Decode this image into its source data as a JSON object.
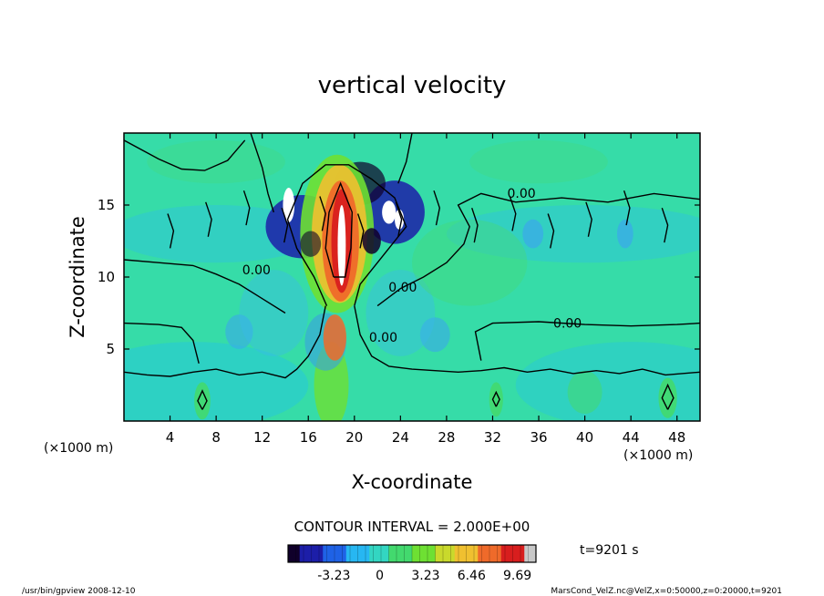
{
  "chart_data": {
    "type": "heatmap",
    "title": "vertical velocity",
    "xlabel": "X-coordinate",
    "ylabel": "Z-coordinate",
    "x_unit_left": "(×1000 m)",
    "x_unit_right": "(×1000 m)",
    "xlim": [
      0,
      50
    ],
    "ylim": [
      0,
      20
    ],
    "x_ticks": [
      4,
      8,
      12,
      16,
      20,
      24,
      28,
      32,
      36,
      40,
      44,
      48
    ],
    "y_ticks": [
      5,
      10,
      15
    ],
    "contour_labels": [
      {
        "text": "0.00",
        "x": 34.5,
        "y": 15.5
      },
      {
        "text": "0.00",
        "x": 11.5,
        "y": 10.2
      },
      {
        "text": "0.00",
        "x": 24.2,
        "y": 9.0
      },
      {
        "text": "0.00",
        "x": 38.5,
        "y": 6.5
      },
      {
        "text": "0.00",
        "x": 22.5,
        "y": 5.5
      }
    ],
    "contour_interval_text": "CONTOUR INTERVAL = 2.000E+00",
    "colorbar": {
      "ticks": [
        {
          "label": "-3.23",
          "value": -3.23
        },
        {
          "label": "0",
          "value": 0
        },
        {
          "label": "3.23",
          "value": 3.23
        },
        {
          "label": "6.46",
          "value": 6.46
        },
        {
          "label": "9.69",
          "value": 9.69
        }
      ],
      "range": [
        -6.46,
        11.0
      ],
      "colors": [
        "#10002a",
        "#1c1ea8",
        "#1f62e6",
        "#27b7f2",
        "#33d6c2",
        "#43d96e",
        "#6ee033",
        "#c9d92c",
        "#f0c030",
        "#ef6a2a",
        "#d81e1e",
        "#c8c8c8"
      ]
    },
    "time_label": "t=9201 s",
    "grid": false
  },
  "footer": {
    "left": "/usr/bin/gpview  2008-12-10",
    "right": "MarsCond_VelZ.nc@VelZ,x=0:50000,z=0:20000,t=9201"
  }
}
